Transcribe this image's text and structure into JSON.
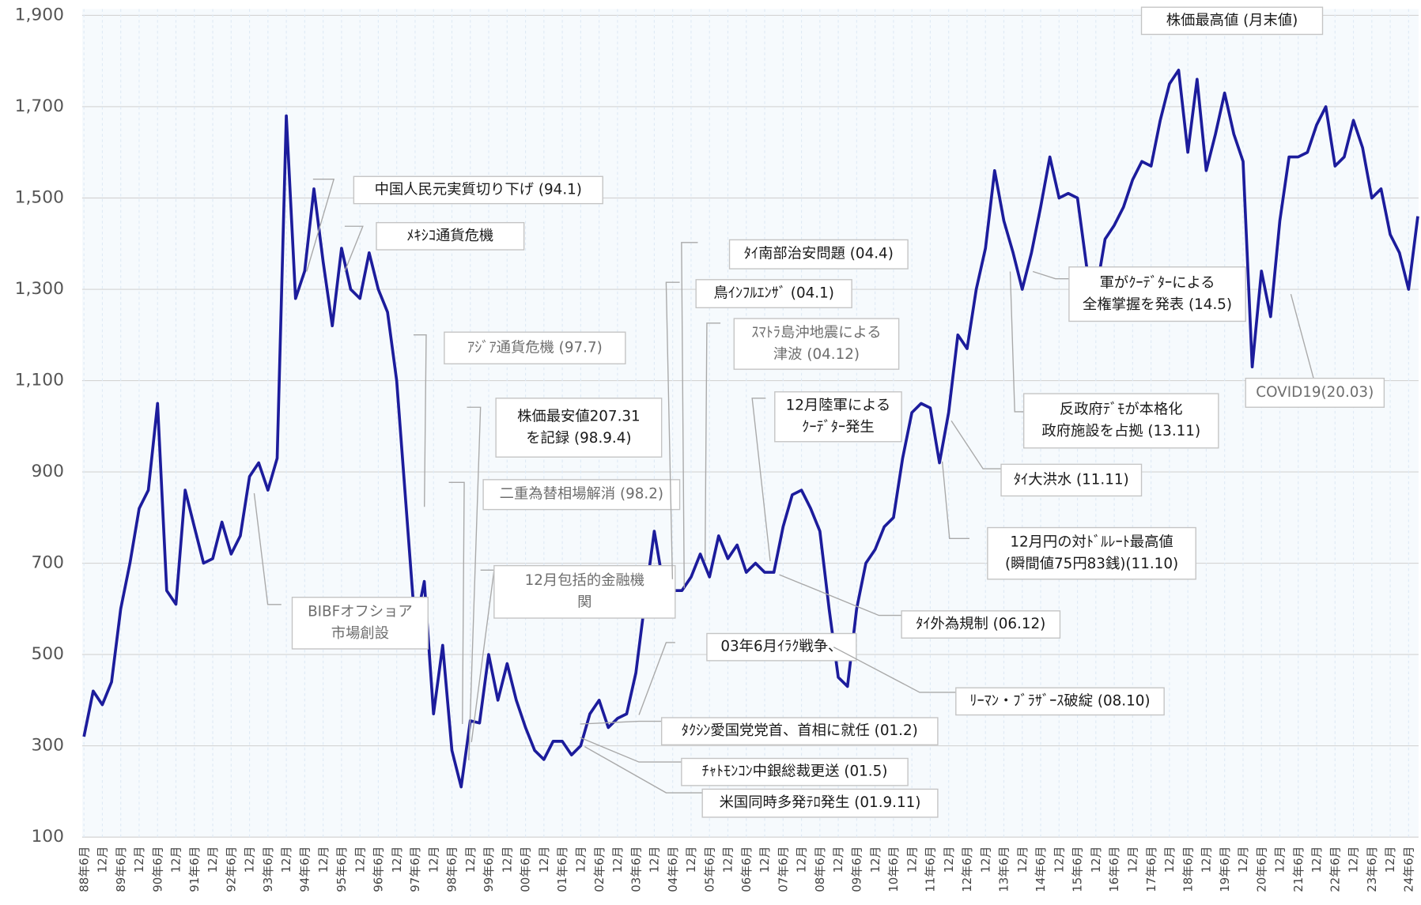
{
  "chart_data": {
    "type": "line",
    "color": "#1c1c9c",
    "grid": true,
    "ylim": [
      100,
      1900
    ],
    "yticks": [
      100,
      300,
      500,
      700,
      900,
      {
        "value": 1100,
        "label": "1,100"
      },
      {
        "value": 1300,
        "label": "1,300"
      },
      {
        "value": 1500,
        "label": "1,500"
      },
      {
        "value": 1700,
        "label": "1,700"
      },
      {
        "value": 1900,
        "label": "1,900"
      }
    ],
    "categories": [
      "88年6月",
      null,
      "12月",
      null,
      "89年6月",
      null,
      "12月",
      null,
      "90年6月",
      null,
      "12月",
      null,
      "91年6月",
      null,
      "12月",
      null,
      "92年6月",
      null,
      "12月",
      null,
      "93年6月",
      null,
      "12月",
      null,
      "94年6月",
      null,
      "12月",
      null,
      "95年6月",
      null,
      "12月",
      null,
      "96年6月",
      null,
      "12月",
      null,
      "97年6月",
      null,
      "12月",
      null,
      "98年6月",
      null,
      "12月",
      null,
      "99年6月",
      null,
      "12月",
      null,
      "00年6月",
      null,
      "12月",
      null,
      "01年6月",
      null,
      "12月",
      null,
      "02年6月",
      null,
      "12月",
      null,
      "03年6月",
      null,
      "12月",
      null,
      "04年6月",
      null,
      "12月",
      null,
      "05年6月",
      null,
      "12月",
      null,
      "06年6月",
      null,
      "12月",
      null,
      "07年6月",
      null,
      "12月",
      null,
      "08年6月",
      null,
      "12月",
      null,
      "09年6月",
      null,
      "12月",
      null,
      "10年6月",
      null,
      "12月",
      null,
      "11年6月",
      null,
      "12月",
      null,
      "12年6月",
      null,
      "12月",
      null,
      "13年6月",
      null,
      "12月",
      null,
      "14年6月",
      null,
      "12月",
      null,
      "15年6月",
      null,
      "12月",
      null,
      "16年6月",
      null,
      "12月",
      null,
      "17年6月",
      null,
      "12月",
      null,
      "18年6月",
      null,
      "12月",
      null,
      "19年6月",
      null,
      "12月",
      null,
      "20年6月",
      null,
      "12月",
      null,
      "21年6月",
      null,
      "12月",
      null,
      "22年6月",
      null,
      "12月",
      null,
      "23年6月",
      null,
      "12月",
      null,
      "24年6月",
      null
    ],
    "values": [
      320,
      420,
      390,
      440,
      600,
      700,
      820,
      860,
      1050,
      640,
      610,
      860,
      780,
      700,
      710,
      790,
      720,
      760,
      890,
      920,
      860,
      930,
      1680,
      1280,
      1340,
      1520,
      1360,
      1220,
      1390,
      1300,
      1280,
      1380,
      1300,
      1250,
      1100,
      830,
      560,
      660,
      370,
      520,
      290,
      210,
      355,
      350,
      500,
      400,
      480,
      400,
      340,
      290,
      270,
      310,
      310,
      280,
      300,
      370,
      400,
      340,
      360,
      370,
      460,
      620,
      770,
      650,
      640,
      640,
      670,
      720,
      670,
      760,
      710,
      740,
      680,
      700,
      680,
      680,
      780,
      850,
      860,
      820,
      770,
      600,
      450,
      430,
      600,
      700,
      730,
      780,
      800,
      930,
      1030,
      1050,
      1040,
      920,
      1030,
      1200,
      1170,
      1300,
      1390,
      1560,
      1450,
      1380,
      1300,
      1380,
      1480,
      1590,
      1500,
      1510,
      1500,
      1350,
      1290,
      1410,
      1440,
      1480,
      1540,
      1580,
      1570,
      1670,
      1750,
      1780,
      1600,
      1760,
      1560,
      1640,
      1730,
      1640,
      1580,
      1130,
      1340,
      1240,
      1450,
      1590,
      1590,
      1600,
      1660,
      1700,
      1570,
      1590,
      1670,
      1610,
      1500,
      1520,
      1420,
      1380,
      1300,
      1460
    ],
    "annotations": [
      {
        "lines": [
          "中国人民元実質切り下げ (94.1)"
        ]
      },
      {
        "lines": [
          "ﾒｷｼｺ通貨危機"
        ]
      },
      {
        "lines": [
          "ｱｼﾞｱ通貨危機 (97.7)"
        ]
      },
      {
        "lines": [
          "株価最安値207.31",
          "を記録 (98.9.4)"
        ]
      },
      {
        "lines": [
          "二重為替相場解消 (98.2)"
        ]
      },
      {
        "lines": [
          "12月包括的金融機",
          "関"
        ]
      },
      {
        "lines": [
          "BIBFオフショア",
          "市場創設"
        ]
      },
      {
        "lines": [
          "ﾀｲ南部治安問題 (04.4)"
        ]
      },
      {
        "lines": [
          "鳥ｲﾝﾌﾙｴﾝｻﾞ (04.1)"
        ]
      },
      {
        "lines": [
          "ｽﾏﾄﾗ島沖地震による",
          "津波 (04.12)"
        ]
      },
      {
        "lines": [
          "12月陸軍による",
          "ｸｰﾃﾞﾀｰ発生"
        ]
      },
      {
        "lines": [
          "03年6月ｲﾗｸ戦争、"
        ]
      },
      {
        "lines": [
          "ﾀｲ外為規制 (06.12)"
        ]
      },
      {
        "lines": [
          "ﾘｰﾏﾝ・ﾌﾞﾗｻﾞｰｽ破綻 (08.10)"
        ]
      },
      {
        "lines": [
          "ﾀｸｼﾝ愛国党党首、首相に就任 (01.2)"
        ]
      },
      {
        "lines": [
          "ﾁｬﾄﾓﾝｺﾝ中銀総裁更送 (01.5)"
        ]
      },
      {
        "lines": [
          "米国同時多発ﾃﾛ発生 (01.9.11)"
        ]
      },
      {
        "lines": [
          "株価最高値 (月末値)"
        ]
      },
      {
        "lines": [
          "軍がｸｰﾃﾞﾀｰによる",
          "全権掌握を発表 (14.5)"
        ]
      },
      {
        "lines": [
          "反政府ﾃﾞﾓが本格化",
          "政府施設を占拠 (13.11)"
        ]
      },
      {
        "lines": [
          "ﾀｲ大洪水 (11.11)"
        ]
      },
      {
        "lines": [
          "12月円の対ﾄﾞﾙﾚｰﾄ最高値",
          "(瞬間値75円83銭)(11.10)"
        ]
      },
      {
        "lines": [
          "COVID19(20.03)"
        ]
      }
    ]
  }
}
